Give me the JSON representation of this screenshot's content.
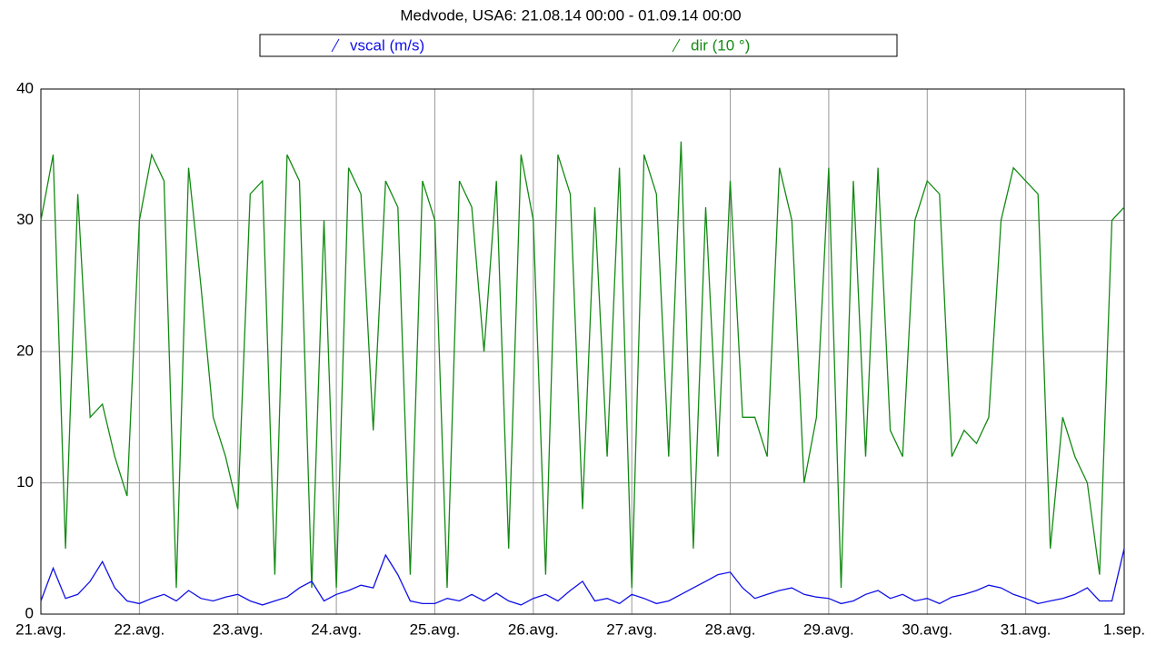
{
  "chart_data": {
    "type": "line",
    "title": "Medvode, USA6: 21.08.14 00:00 - 01.09.14 00:00",
    "x": [
      0,
      3,
      6,
      9,
      12,
      15,
      18,
      21,
      24,
      27,
      30,
      33,
      36,
      39,
      42,
      45,
      48,
      51,
      54,
      57,
      60,
      63,
      66,
      69,
      72,
      75,
      78,
      81,
      84,
      87,
      90,
      93,
      96,
      99,
      102,
      105,
      108,
      111,
      114,
      117,
      120,
      123,
      126,
      129,
      132,
      135,
      138,
      141,
      144,
      147,
      150,
      153,
      156,
      159,
      162,
      165,
      168,
      171,
      174,
      177,
      180,
      183,
      186,
      189,
      192,
      195,
      198,
      201,
      204,
      207,
      210,
      213,
      216,
      219,
      222,
      225,
      228,
      231,
      234,
      237,
      240,
      243,
      246,
      249,
      252,
      255,
      258,
      261,
      264
    ],
    "xlim": [
      0,
      264
    ],
    "xticks": [
      {
        "value": 0,
        "label": "21.avg."
      },
      {
        "value": 24,
        "label": "22.avg."
      },
      {
        "value": 48,
        "label": "23.avg."
      },
      {
        "value": 72,
        "label": "24.avg."
      },
      {
        "value": 96,
        "label": "25.avg."
      },
      {
        "value": 120,
        "label": "26.avg."
      },
      {
        "value": 144,
        "label": "27.avg."
      },
      {
        "value": 168,
        "label": "28.avg."
      },
      {
        "value": 192,
        "label": "29.avg."
      },
      {
        "value": 216,
        "label": "30.avg."
      },
      {
        "value": 240,
        "label": "31.avg."
      },
      {
        "value": 264,
        "label": "1.sep."
      }
    ],
    "ylim": [
      0,
      40
    ],
    "yticks": [
      0,
      10,
      20,
      30,
      40
    ],
    "grid": true,
    "series": [
      {
        "name": "vscal (m/s)",
        "color": "#1010e8",
        "values": [
          1,
          3.5,
          1.2,
          1.5,
          2.5,
          4,
          2,
          1,
          0.8,
          1.2,
          1.5,
          1,
          1.8,
          1.2,
          1,
          1.3,
          1.5,
          1,
          0.7,
          1,
          1.3,
          2,
          2.5,
          1,
          1.5,
          1.8,
          2.2,
          2,
          4.5,
          3,
          1,
          0.8,
          0.8,
          1.2,
          1,
          1.5,
          1,
          1.6,
          1,
          0.7,
          1.2,
          1.5,
          1,
          1.8,
          2.5,
          1,
          1.2,
          0.8,
          1.5,
          1.2,
          0.8,
          1,
          1.5,
          2,
          2.5,
          3,
          3.2,
          2,
          1.2,
          1.5,
          1.8,
          2,
          1.5,
          1.3,
          1.2,
          0.8,
          1,
          1.5,
          1.8,
          1.2,
          1.5,
          1,
          1.2,
          0.8,
          1.3,
          1.5,
          1.8,
          2.2,
          2,
          1.5,
          1.2,
          0.8,
          1,
          1.2,
          1.5,
          2,
          1,
          1,
          5
        ]
      },
      {
        "name": "dir (10 °)",
        "color": "#138a13",
        "values": [
          30,
          35,
          5,
          32,
          15,
          16,
          12,
          9,
          30,
          35,
          33,
          2,
          34,
          25,
          15,
          12,
          8,
          32,
          33,
          3,
          35,
          33,
          2,
          30,
          2,
          34,
          32,
          14,
          33,
          31,
          3,
          33,
          30,
          2,
          33,
          31,
          20,
          33,
          5,
          35,
          30,
          3,
          35,
          32,
          8,
          31,
          12,
          34,
          2,
          35,
          32,
          12,
          36,
          5,
          31,
          12,
          33,
          15,
          15,
          12,
          34,
          30,
          10,
          15,
          34,
          2,
          33,
          12,
          34,
          14,
          12,
          30,
          33,
          32,
          12,
          14,
          13,
          15,
          30,
          34,
          33,
          32,
          5,
          15,
          12,
          10,
          3,
          30,
          31
        ]
      }
    ]
  }
}
